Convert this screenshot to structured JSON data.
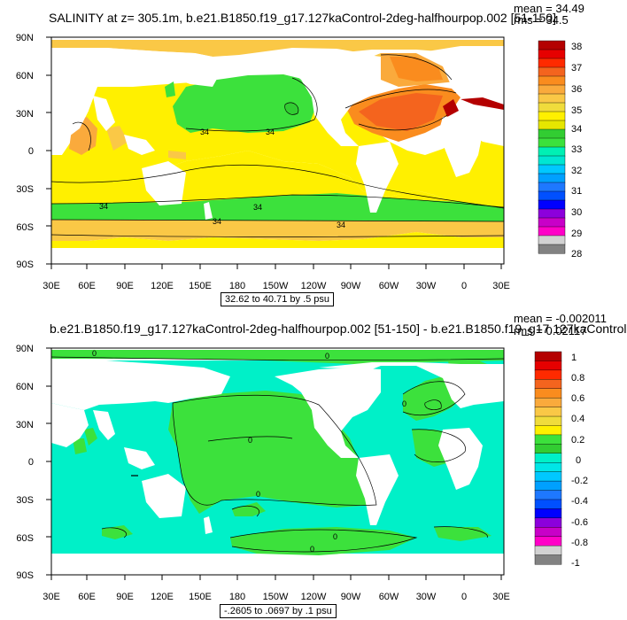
{
  "top_panel": {
    "title": "SALINITY at z= 305.1m, b.e21.B1850.f19_g17.127kaControl-2deg-halfhourpop.002 [51-150]",
    "mean": "mean = 34.49",
    "rms": "rms = 34.5",
    "range_label": "32.62 to 40.71 by .5 psu",
    "contour_labels": [
      "34",
      "34",
      "34",
      "34",
      "34",
      "34"
    ],
    "colorbar": {
      "labels": [
        "38",
        "37",
        "36",
        "35",
        "34",
        "33",
        "32",
        "31",
        "30",
        "29",
        "28"
      ],
      "colors": [
        "#B40000",
        "#E60000",
        "#FF2A00",
        "#F4641E",
        "#FA8C1E",
        "#FAAA3C",
        "#FAC846",
        "#F0DC3C",
        "#FFF000",
        "#E6E600",
        "#32CD32",
        "#3CE13C",
        "#00F0B4",
        "#00E6D2",
        "#00C8FF",
        "#00A0FF",
        "#1E78FF",
        "#0050FF",
        "#0000FF",
        "#8C00DC",
        "#C800C8",
        "#FF00C8",
        "#D2D2D2",
        "#828282"
      ]
    }
  },
  "bottom_panel": {
    "title": "b.e21.B1850.f19_g17.127kaControl-2deg-halfhourpop.002 [51-150] - b.e21.B1850.f19_g17.127kaControl",
    "mean": "mean = -0.002011",
    "rms": "rms = 0.02117",
    "range_label": "-.2605 to .0697 by .1 psu",
    "contour_labels": [
      "0",
      "0",
      "0",
      "0",
      "0",
      "0",
      "0"
    ],
    "colorbar": {
      "labels": [
        "1",
        "0.8",
        "0.6",
        "0.4",
        "0.2",
        "0",
        "-0.2",
        "-0.4",
        "-0.6",
        "-0.8",
        "-1"
      ],
      "colors": [
        "#B40000",
        "#E60000",
        "#FF2A00",
        "#F4641E",
        "#FA8C1E",
        "#FAAA3C",
        "#FAC846",
        "#F0DC3C",
        "#FFF000",
        "#3CE13C",
        "#32CD32",
        "#00F0C8",
        "#00E6E6",
        "#00C8FF",
        "#00A0FF",
        "#1E78FF",
        "#0050FF",
        "#0000FF",
        "#8C00DC",
        "#C800C8",
        "#FF00C8",
        "#D2D2D2",
        "#828282"
      ]
    }
  },
  "axes": {
    "lat_labels": [
      "90N",
      "60N",
      "30N",
      "0",
      "30S",
      "60S",
      "90S"
    ],
    "lon_labels": [
      "30E",
      "60E",
      "90E",
      "120E",
      "150E",
      "180",
      "150W",
      "120W",
      "90W",
      "60W",
      "30W",
      "0",
      "30E"
    ]
  }
}
